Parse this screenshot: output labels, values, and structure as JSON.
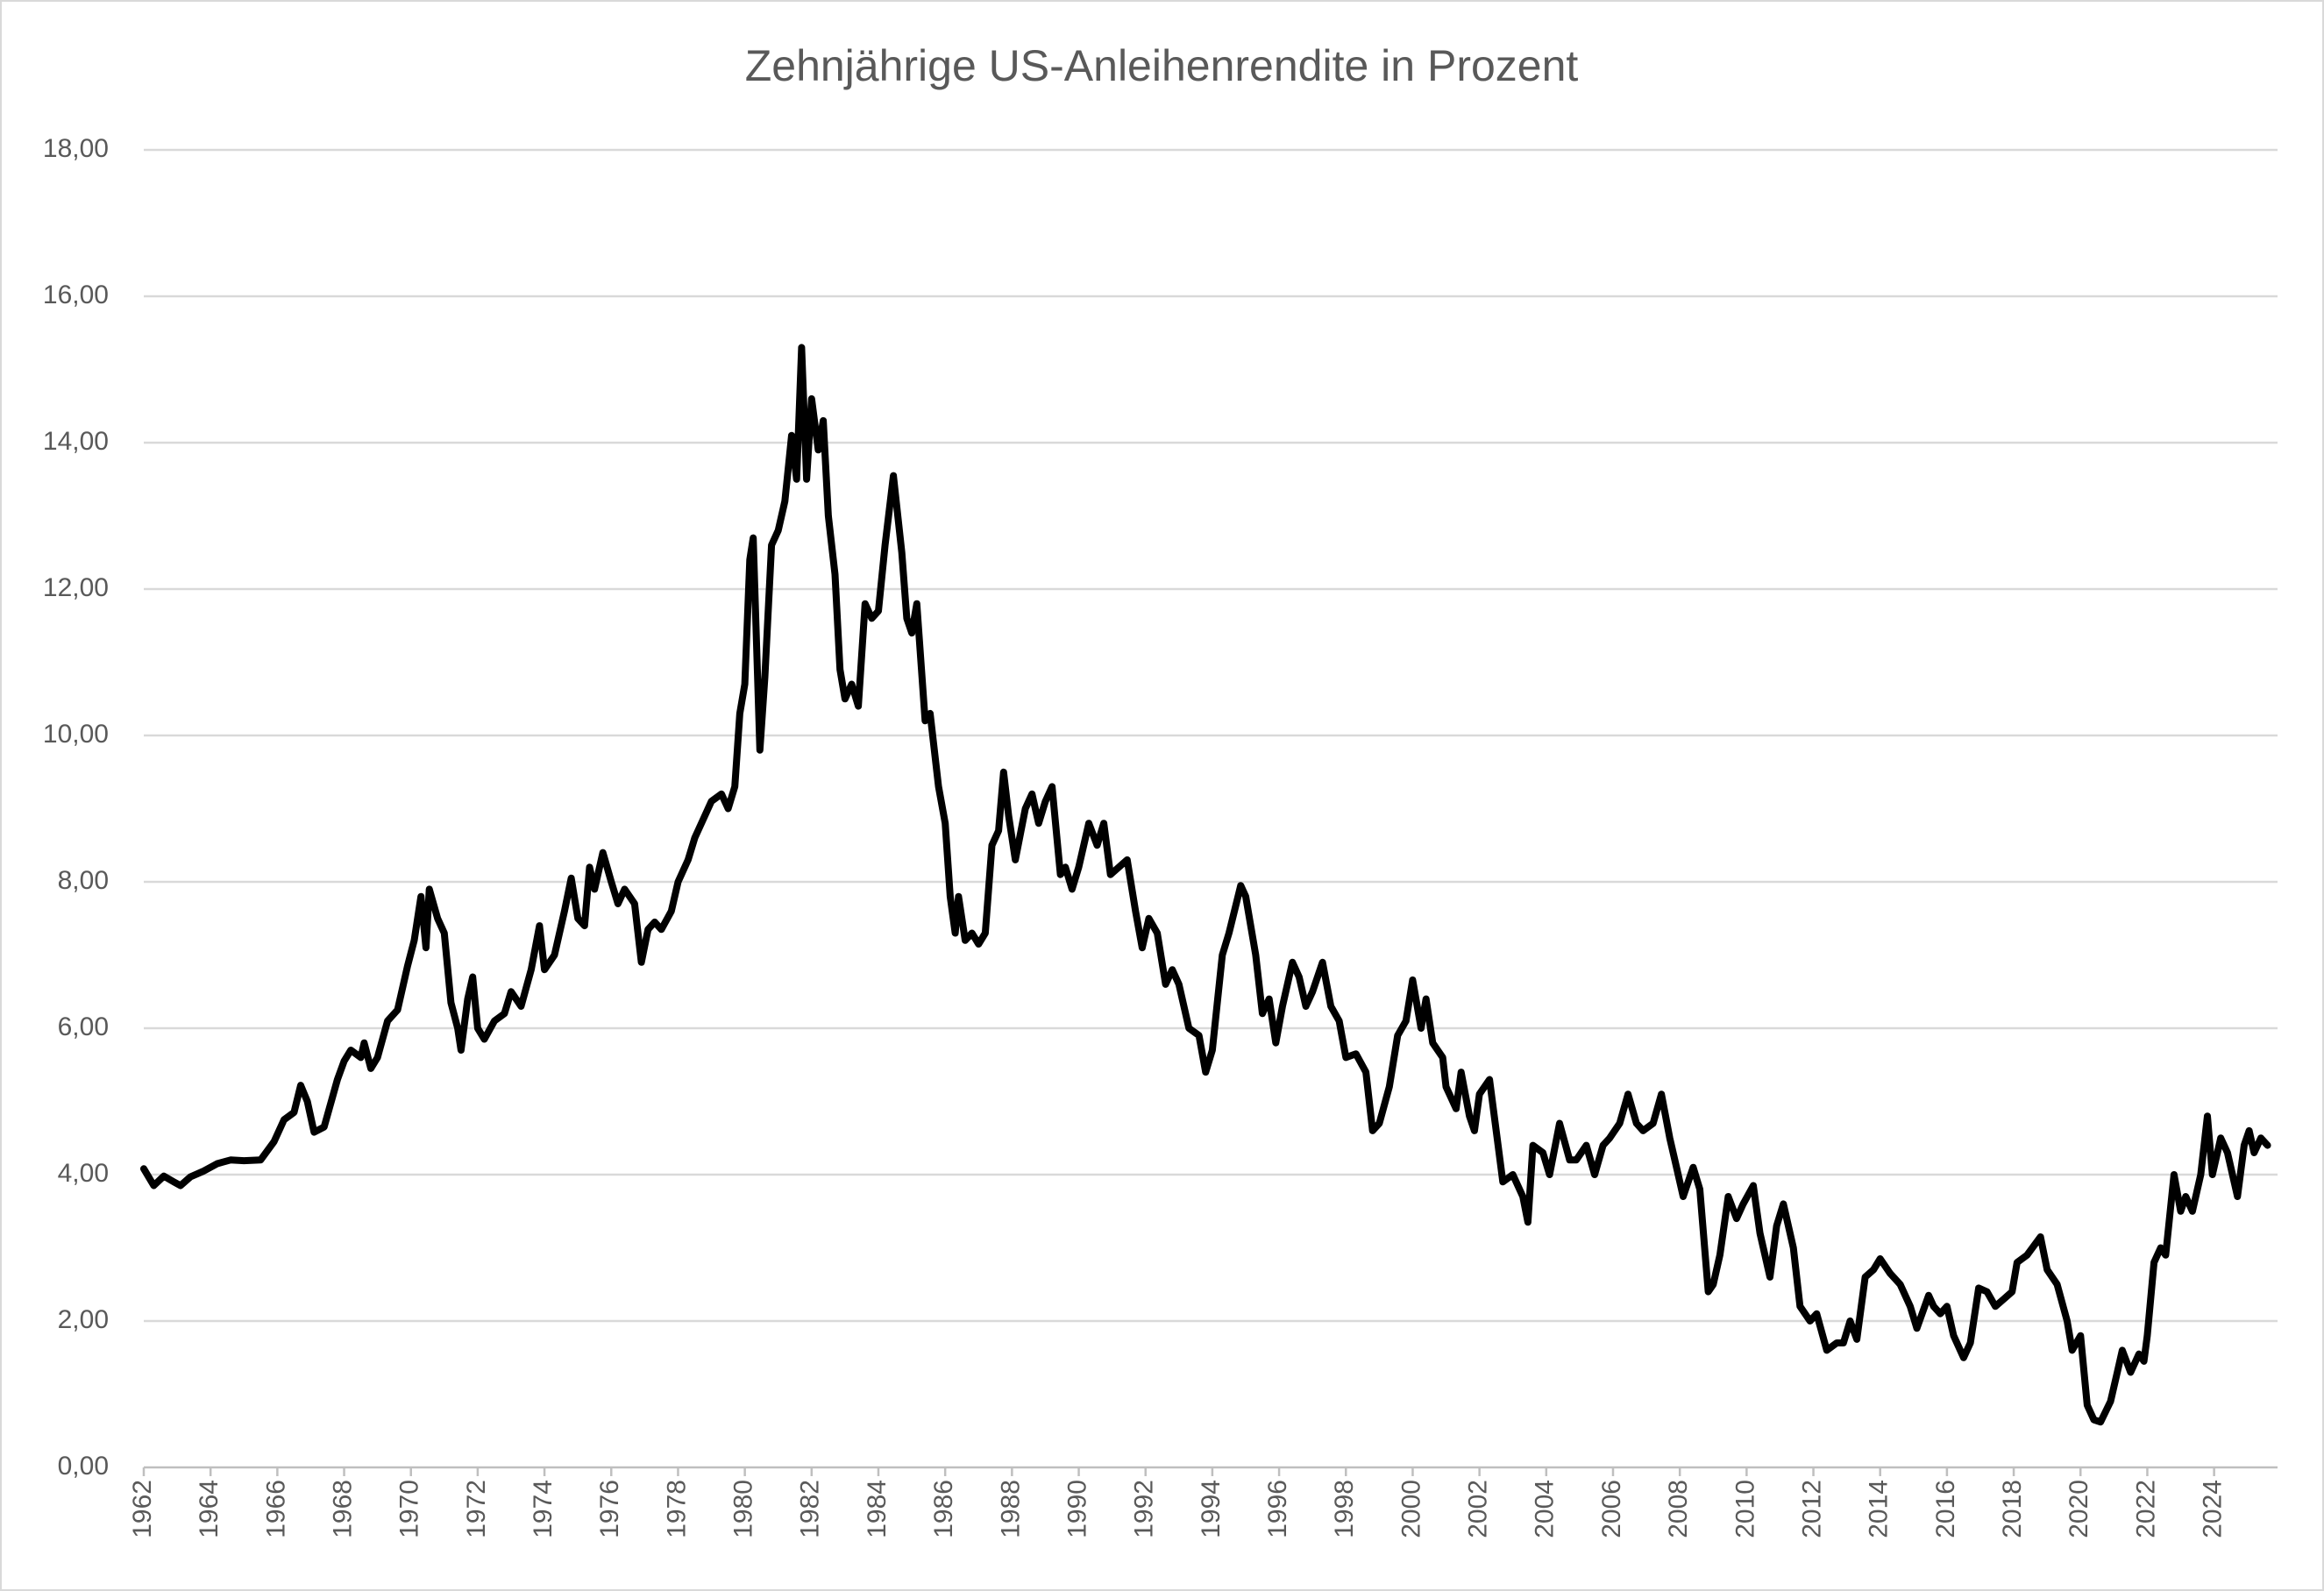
{
  "chart_data": {
    "type": "line",
    "title": "Zehnjährige US-Anleihenrendite in Prozent",
    "color": "#000000",
    "grid": true,
    "xlim": [
      1962,
      2025.9
    ],
    "xticks": [
      1962,
      1964,
      1966,
      1968,
      1970,
      1972,
      1974,
      1976,
      1978,
      1980,
      1982,
      1984,
      1986,
      1988,
      1990,
      1992,
      1994,
      1996,
      1998,
      2000,
      2002,
      2004,
      2006,
      2008,
      2010,
      2012,
      2014,
      2016,
      2018,
      2020,
      2022,
      2024
    ],
    "ylim": [
      0,
      18
    ],
    "yticks": [
      {
        "value": 0,
        "label": "0,00"
      },
      {
        "value": 2,
        "label": "2,00"
      },
      {
        "value": 4,
        "label": "4,00"
      },
      {
        "value": 6,
        "label": "6,00"
      },
      {
        "value": 8,
        "label": "8,00"
      },
      {
        "value": 10,
        "label": "10,00"
      },
      {
        "value": 12,
        "label": "12,00"
      },
      {
        "value": 14,
        "label": "14,00"
      },
      {
        "value": 16,
        "label": "16,00"
      },
      {
        "value": 18,
        "label": "18,00"
      }
    ],
    "x": [
      1962.0,
      1962.3,
      1962.6,
      1962.9,
      1963.1,
      1963.4,
      1963.8,
      1964.2,
      1964.6,
      1965.0,
      1965.5,
      1965.9,
      1966.2,
      1966.5,
      1966.7,
      1966.9,
      1967.1,
      1967.4,
      1967.8,
      1968.0,
      1968.2,
      1968.5,
      1968.6,
      1968.8,
      1969.0,
      1969.3,
      1969.6,
      1969.9,
      1970.1,
      1970.3,
      1970.45,
      1970.55,
      1970.8,
      1971.0,
      1971.2,
      1971.4,
      1971.5,
      1971.7,
      1971.85,
      1972.0,
      1972.2,
      1972.5,
      1972.8,
      1973.0,
      1973.3,
      1973.6,
      1973.85,
      1974.0,
      1974.3,
      1974.6,
      1974.8,
      1975.0,
      1975.2,
      1975.35,
      1975.5,
      1975.75,
      1976.0,
      1976.2,
      1976.4,
      1976.7,
      1976.9,
      1977.1,
      1977.3,
      1977.5,
      1977.8,
      1978.0,
      1978.3,
      1978.5,
      1978.8,
      1979.0,
      1979.3,
      1979.5,
      1979.7,
      1979.85,
      1980.0,
      1980.15,
      1980.25,
      1980.45,
      1980.6,
      1980.8,
      1981.0,
      1981.2,
      1981.4,
      1981.55,
      1981.7,
      1981.85,
      1982.0,
      1982.2,
      1982.35,
      1982.5,
      1982.7,
      1982.85,
      1983.0,
      1983.2,
      1983.4,
      1983.6,
      1983.8,
      1984.0,
      1984.2,
      1984.45,
      1984.7,
      1984.85,
      1985.0,
      1985.15,
      1985.4,
      1985.55,
      1985.8,
      1986.0,
      1986.15,
      1986.3,
      1986.4,
      1986.6,
      1986.8,
      1987.0,
      1987.2,
      1987.4,
      1987.6,
      1987.75,
      1987.9,
      1988.1,
      1988.4,
      1988.6,
      1988.8,
      1989.0,
      1989.2,
      1989.45,
      1989.6,
      1989.8,
      1990.0,
      1990.3,
      1990.55,
      1990.75,
      1990.95,
      1991.2,
      1991.45,
      1991.7,
      1991.9,
      1992.1,
      1992.35,
      1992.6,
      1992.8,
      1993.0,
      1993.3,
      1993.6,
      1993.8,
      1994.0,
      1994.3,
      1994.5,
      1994.85,
      1995.0,
      1995.3,
      1995.5,
      1995.7,
      1995.9,
      1996.1,
      1996.4,
      1996.6,
      1996.8,
      1997.0,
      1997.3,
      1997.55,
      1997.8,
      1998.0,
      1998.3,
      1998.6,
      1998.8,
      1999.0,
      1999.3,
      1999.55,
      1999.8,
      2000.0,
      2000.25,
      2000.4,
      2000.6,
      2000.9,
      2001.0,
      2001.3,
      2001.45,
      2001.7,
      2001.85,
      2002.0,
      2002.3,
      2002.5,
      2002.7,
      2003.0,
      2003.3,
      2003.45,
      2003.6,
      2003.9,
      2004.1,
      2004.4,
      2004.7,
      2004.9,
      2005.2,
      2005.45,
      2005.7,
      2005.9,
      2006.2,
      2006.45,
      2006.7,
      2006.9,
      2007.2,
      2007.45,
      2007.7,
      2007.9,
      2008.1,
      2008.4,
      2008.6,
      2008.85,
      2009.0,
      2009.2,
      2009.45,
      2009.7,
      2009.9,
      2010.2,
      2010.4,
      2010.7,
      2010.9,
      2011.1,
      2011.4,
      2011.6,
      2011.9,
      2012.1,
      2012.4,
      2012.7,
      2012.9,
      2013.1,
      2013.3,
      2013.55,
      2013.8,
      2014.0,
      2014.3,
      2014.6,
      2014.9,
      2015.1,
      2015.45,
      2015.6,
      2015.8,
      2016.0,
      2016.2,
      2016.5,
      2016.7,
      2016.95,
      2017.2,
      2017.45,
      2017.7,
      2017.95,
      2018.1,
      2018.4,
      2018.8,
      2019.0,
      2019.3,
      2019.6,
      2019.75,
      2020.0,
      2020.2,
      2020.4,
      2020.6,
      2020.9,
      2021.1,
      2021.25,
      2021.5,
      2021.75,
      2021.9,
      2022.0,
      2022.2,
      2022.4,
      2022.55,
      2022.8,
      2023.0,
      2023.15,
      2023.35,
      2023.6,
      2023.8,
      2023.95,
      2024.2,
      2024.4,
      2024.7,
      2024.9,
      2025.05,
      2025.2,
      2025.4,
      2025.6
    ],
    "values": [
      4.08,
      3.85,
      3.98,
      3.9,
      3.85,
      3.97,
      4.05,
      4.15,
      4.2,
      4.19,
      4.2,
      4.45,
      4.75,
      4.85,
      5.22,
      5.0,
      4.58,
      4.65,
      5.3,
      5.55,
      5.7,
      5.6,
      5.8,
      5.45,
      5.6,
      6.1,
      6.25,
      6.85,
      7.2,
      7.8,
      7.1,
      7.9,
      7.5,
      7.3,
      6.35,
      6.0,
      5.7,
      6.4,
      6.7,
      6.0,
      5.85,
      6.1,
      6.2,
      6.5,
      6.3,
      6.8,
      7.4,
      6.8,
      7.0,
      7.6,
      8.05,
      7.5,
      7.4,
      8.2,
      7.9,
      8.4,
      8.0,
      7.7,
      7.9,
      7.7,
      6.9,
      7.35,
      7.45,
      7.35,
      7.6,
      8.0,
      8.3,
      8.6,
      8.9,
      9.1,
      9.2,
      9.0,
      9.3,
      10.3,
      10.7,
      12.4,
      12.7,
      9.8,
      10.8,
      12.6,
      12.8,
      13.2,
      14.1,
      13.5,
      15.3,
      13.5,
      14.6,
      13.9,
      14.3,
      13.0,
      12.2,
      10.9,
      10.5,
      10.7,
      10.4,
      11.8,
      11.6,
      11.7,
      12.6,
      13.55,
      12.5,
      11.6,
      11.4,
      11.8,
      10.2,
      10.3,
      9.3,
      8.8,
      7.8,
      7.3,
      7.8,
      7.2,
      7.3,
      7.15,
      7.3,
      8.5,
      8.7,
      9.5,
      8.9,
      8.3,
      9.0,
      9.2,
      8.8,
      9.1,
      9.3,
      8.1,
      8.2,
      7.9,
      8.2,
      8.8,
      8.5,
      8.8,
      8.1,
      8.2,
      8.3,
      7.6,
      7.1,
      7.5,
      7.3,
      6.6,
      6.8,
      6.6,
      6.0,
      5.9,
      5.4,
      5.7,
      7.0,
      7.3,
      7.95,
      7.8,
      7.0,
      6.2,
      6.4,
      5.8,
      6.3,
      6.9,
      6.7,
      6.3,
      6.5,
      6.9,
      6.3,
      6.1,
      5.6,
      5.65,
      5.4,
      4.6,
      4.7,
      5.2,
      5.9,
      6.1,
      6.66,
      6.0,
      6.4,
      5.8,
      5.6,
      5.2,
      4.9,
      5.4,
      4.8,
      4.6,
      5.1,
      5.3,
      4.6,
      3.9,
      4.0,
      3.7,
      3.35,
      4.4,
      4.3,
      4.0,
      4.7,
      4.2,
      4.2,
      4.4,
      4.0,
      4.4,
      4.5,
      4.7,
      5.1,
      4.7,
      4.6,
      4.7,
      5.1,
      4.5,
      4.1,
      3.7,
      4.1,
      3.8,
      2.4,
      2.5,
      2.9,
      3.7,
      3.4,
      3.6,
      3.85,
      3.2,
      2.6,
      3.3,
      3.6,
      3.0,
      2.2,
      2.0,
      2.1,
      1.6,
      1.7,
      1.7,
      2.0,
      1.75,
      2.6,
      2.7,
      2.85,
      2.65,
      2.5,
      2.2,
      1.9,
      2.35,
      2.2,
      2.1,
      2.2,
      1.8,
      1.5,
      1.7,
      2.45,
      2.4,
      2.2,
      2.3,
      2.4,
      2.8,
      2.9,
      3.15,
      2.7,
      2.5,
      2.0,
      1.6,
      1.8,
      0.85,
      0.65,
      0.62,
      0.9,
      1.3,
      1.6,
      1.3,
      1.55,
      1.45,
      1.8,
      2.8,
      3.0,
      2.9,
      4.0,
      3.5,
      3.7,
      3.5,
      4.0,
      4.8,
      4.0,
      4.5,
      4.3,
      3.7,
      4.4,
      4.6,
      4.3,
      4.5,
      4.4
    ]
  }
}
